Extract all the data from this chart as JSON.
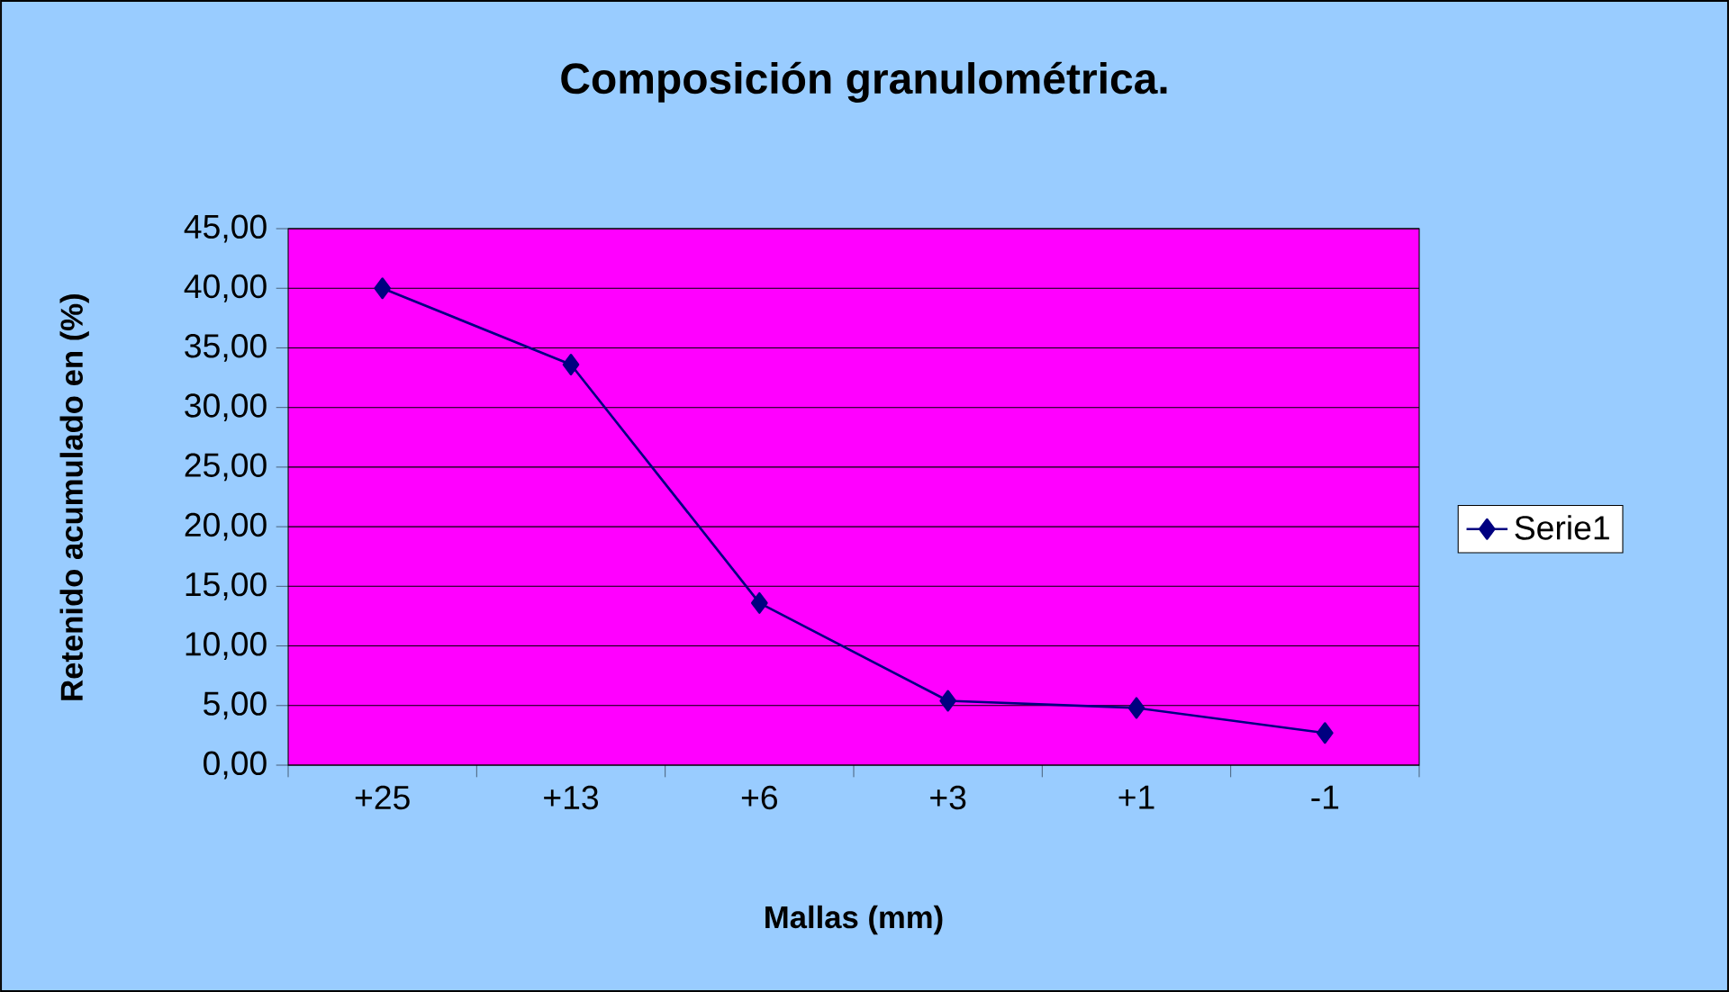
{
  "chart_data": {
    "type": "line",
    "title": "Composición granulométrica.",
    "xlabel": "Mallas (mm)",
    "ylabel": "Retenido acumulado en (%)",
    "categories": [
      "+25",
      "+13",
      "+6",
      "+3",
      "+1",
      "-1"
    ],
    "series": [
      {
        "name": "Serie1",
        "color": "#000080",
        "values": [
          40.0,
          33.6,
          13.6,
          5.4,
          4.8,
          2.7
        ]
      }
    ],
    "ylim": [
      0,
      45
    ],
    "yticks": [
      {
        "value": 0,
        "label": "0,00"
      },
      {
        "value": 5,
        "label": "5,00"
      },
      {
        "value": 10,
        "label": "10,00"
      },
      {
        "value": 15,
        "label": "15,00"
      },
      {
        "value": 20,
        "label": "20,00"
      },
      {
        "value": 25,
        "label": "25,00"
      },
      {
        "value": 30,
        "label": "30,00"
      },
      {
        "value": 35,
        "label": "35,00"
      },
      {
        "value": 40,
        "label": "40,00"
      },
      {
        "value": 45,
        "label": "45,00"
      }
    ],
    "grid": "y",
    "legend": "right",
    "marker": "diamond",
    "line_style": "solid"
  }
}
